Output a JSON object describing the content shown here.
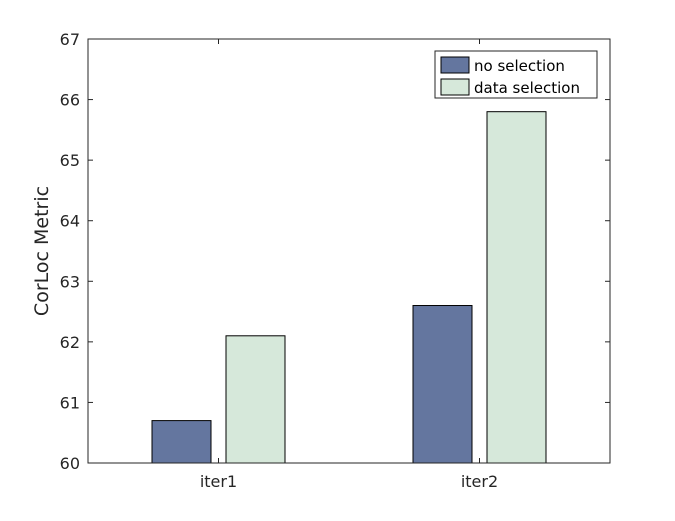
{
  "chart_data": {
    "type": "bar",
    "title": "",
    "xlabel": "",
    "ylabel": "CorLoc Metric",
    "categories": [
      "iter1",
      "iter2"
    ],
    "series": [
      {
        "name": "no selection",
        "values": [
          60.7,
          62.6
        ],
        "color": "#64769f"
      },
      {
        "name": "data selection",
        "values": [
          62.1,
          65.8
        ],
        "color": "#d6e8da"
      }
    ],
    "ylim": [
      60,
      67
    ],
    "yticks": [
      60,
      61,
      62,
      63,
      64,
      65,
      66,
      67
    ],
    "grid": false,
    "legend_position": "top-right"
  }
}
